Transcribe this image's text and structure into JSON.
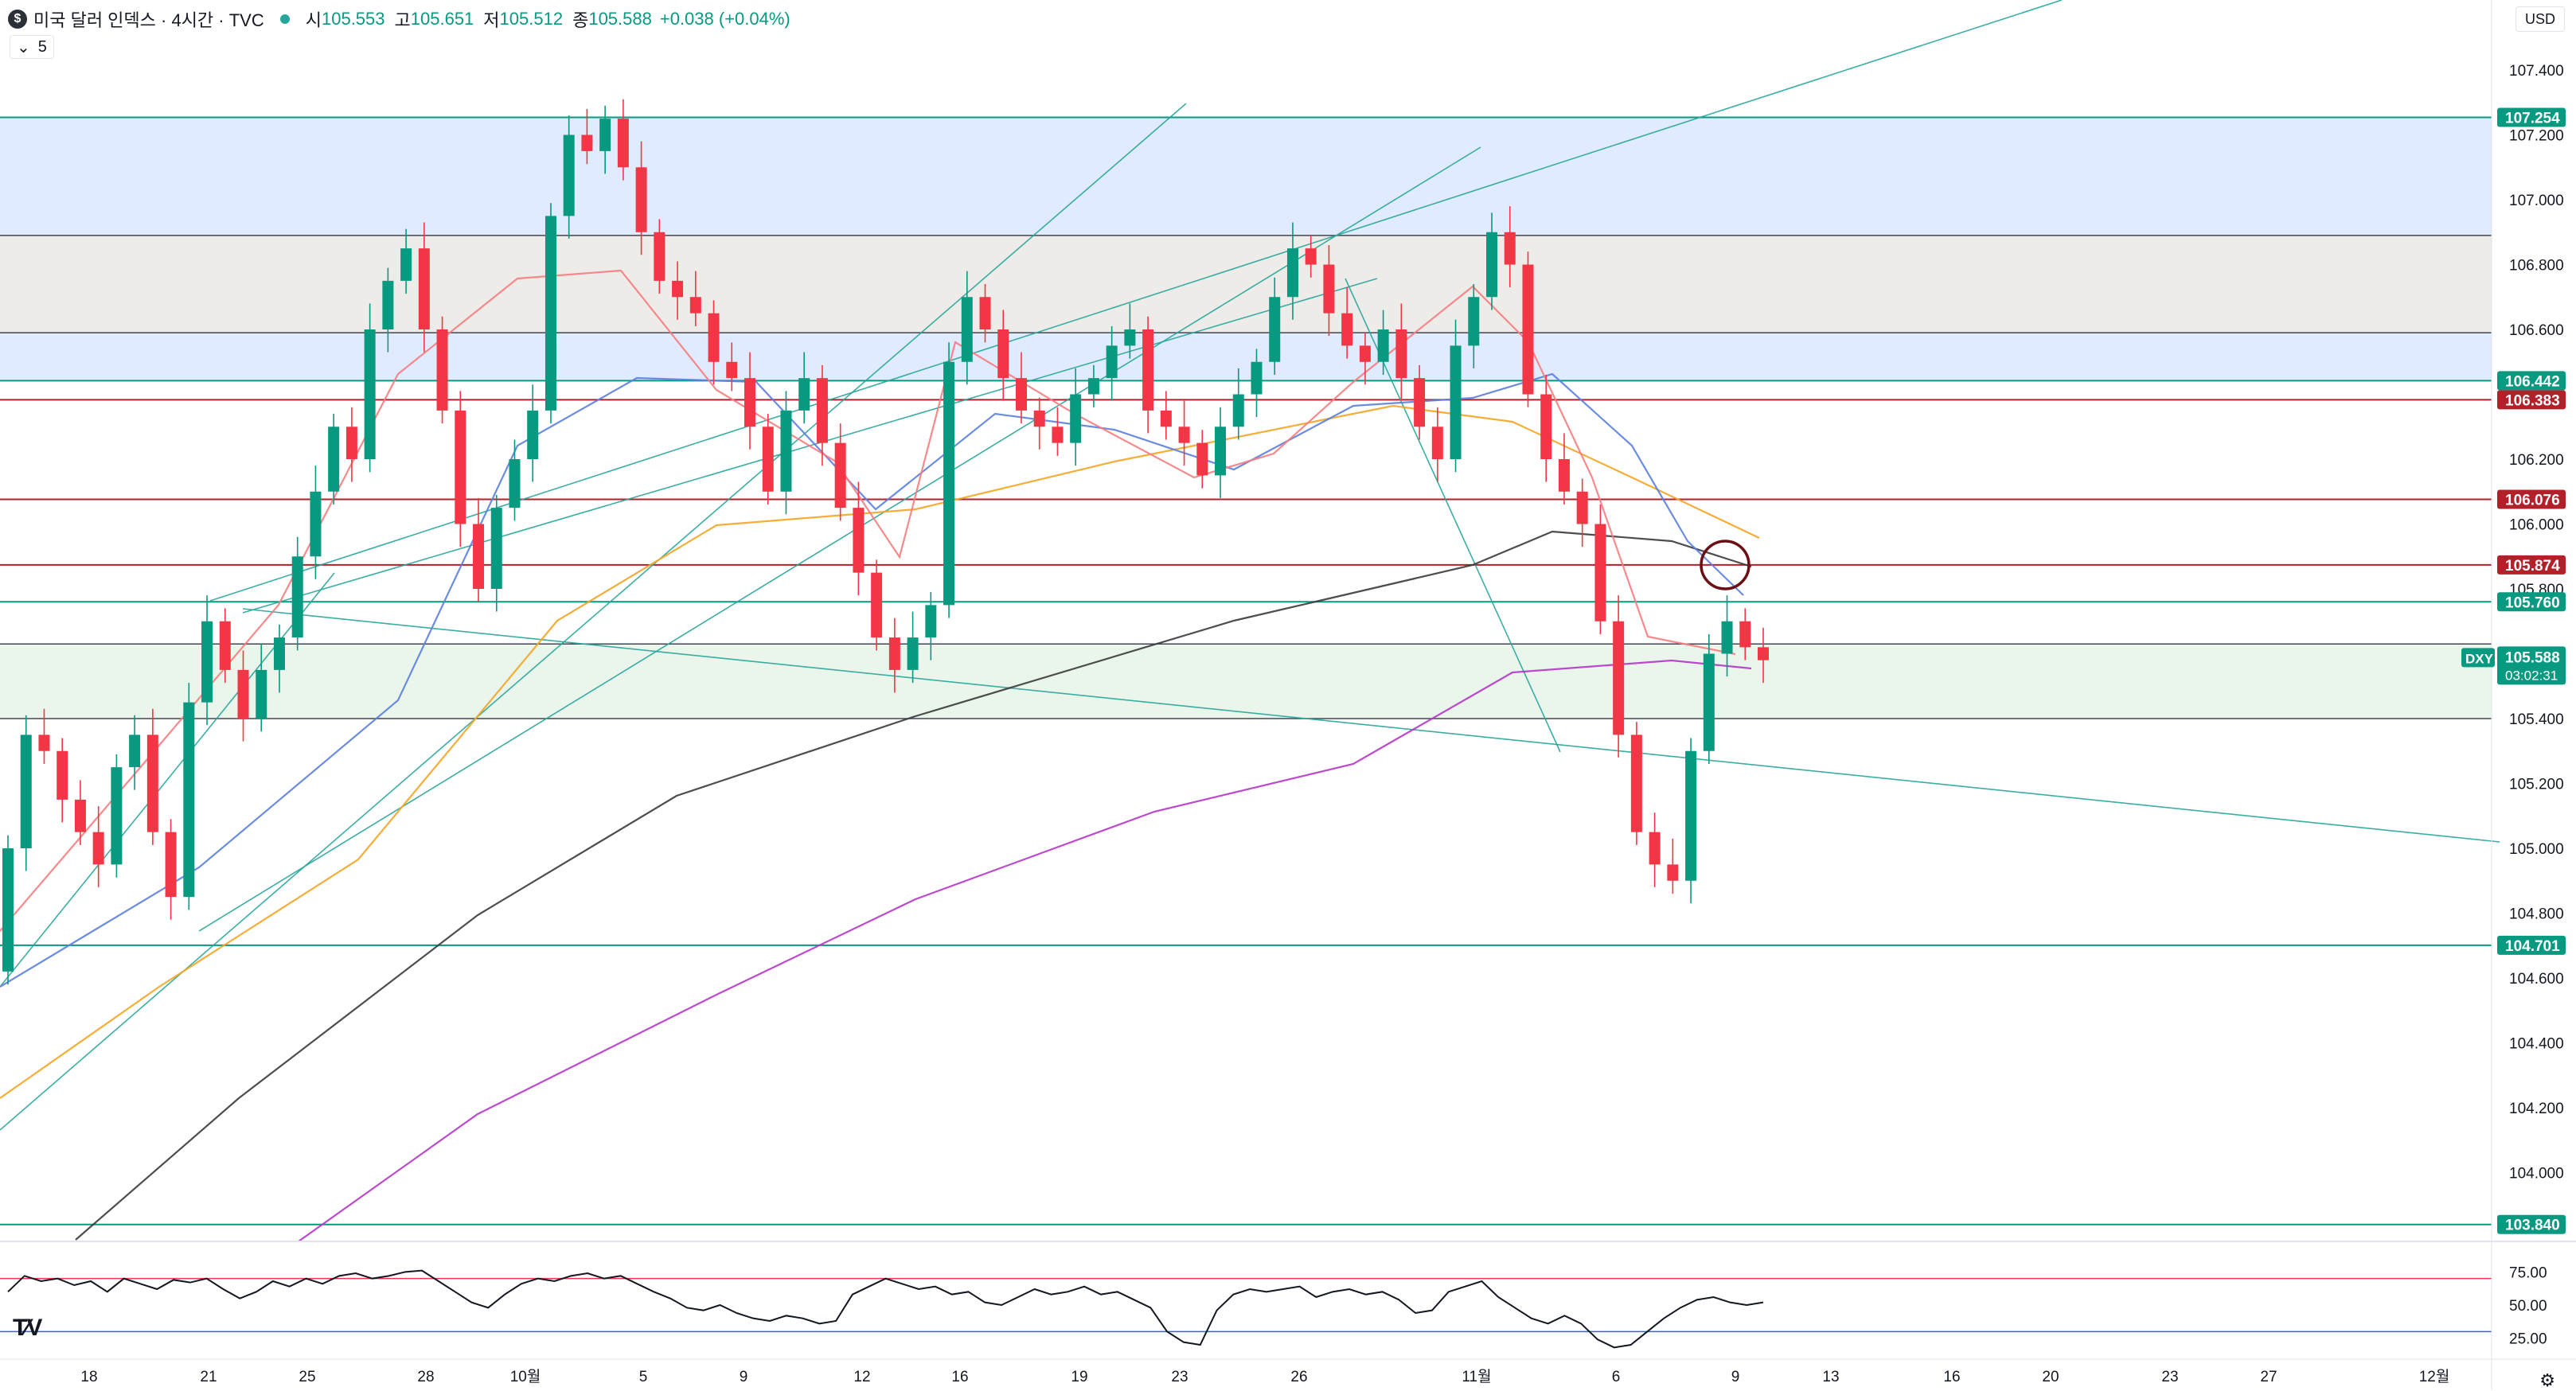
{
  "header": {
    "logo_glyph": "$",
    "title": "미국 달러 인덱스 · 4시간 · TVC",
    "open_label": "시",
    "open": "105.553",
    "high_label": "고",
    "high": "105.651",
    "low_label": "저",
    "low": "105.512",
    "close_label": "종",
    "close": "105.588",
    "change": "+0.038 (+0.04%)",
    "indicator_toggle": "5",
    "currency": "USD"
  },
  "colors": {
    "up": "#089981",
    "down": "#f23645",
    "zone_blue": "#dbe7ff",
    "zone_gray": "#ebe9e4",
    "zone_green": "#e6f4e9",
    "ma_red": "#f77c80",
    "ma_blue": "#5b7fde",
    "ma_orange": "#f5a524",
    "ma_black": "#3a3a3a",
    "ma_purple": "#b535c9",
    "trend": "#26a69a"
  },
  "chart_data": {
    "type": "candlestick",
    "symbol": "DXY",
    "price_axis": {
      "ticks": [
        "107.400",
        "107.200",
        "107.000",
        "106.800",
        "106.600",
        "106.200",
        "106.000",
        "105.800",
        "105.400",
        "105.200",
        "105.000",
        "104.800",
        "104.600",
        "104.400",
        "104.200",
        "104.000"
      ],
      "ylim": [
        103.7,
        107.6
      ]
    },
    "time_axis": {
      "labels": [
        "18",
        "21",
        "25",
        "28",
        "10월",
        "5",
        "9",
        "12",
        "16",
        "19",
        "23",
        "26",
        "11월",
        "6",
        "9",
        "13",
        "16",
        "20",
        "23",
        "27",
        "12월"
      ]
    },
    "horizontal_levels": [
      {
        "price": 107.254,
        "label": "107.254",
        "color": "#089981"
      },
      {
        "price": 106.442,
        "label": "106.442",
        "color": "#089981"
      },
      {
        "price": 106.383,
        "label": "106.383",
        "color": "#b2202a"
      },
      {
        "price": 106.076,
        "label": "106.076",
        "color": "#b2202a"
      },
      {
        "price": 105.874,
        "label": "105.874",
        "color": "#b2202a"
      },
      {
        "price": 105.76,
        "label": "105.760",
        "color": "#089981"
      },
      {
        "price": 104.701,
        "label": "104.701",
        "color": "#089981"
      },
      {
        "price": 103.84,
        "label": "103.840",
        "color": "#089981"
      }
    ],
    "last_price": {
      "symbol": "DXY",
      "price": "105.588",
      "countdown": "03:02:31"
    },
    "zones": [
      {
        "from": 106.89,
        "to": 107.254,
        "color": "blue"
      },
      {
        "from": 106.59,
        "to": 106.89,
        "color": "gray"
      },
      {
        "from": 106.442,
        "to": 106.59,
        "color": "blue"
      },
      {
        "from": 105.4,
        "to": 105.63,
        "color": "green"
      }
    ],
    "rsi": {
      "ticks": [
        "75.00",
        "50.00",
        "25.00"
      ],
      "upper": 70,
      "lower": 30,
      "values": [
        60,
        72,
        68,
        70,
        65,
        68,
        60,
        70,
        66,
        62,
        69,
        67,
        70,
        62,
        55,
        60,
        68,
        64,
        70,
        66,
        72,
        74,
        70,
        72,
        75,
        76,
        68,
        60,
        52,
        48,
        58,
        66,
        70,
        68,
        72,
        74,
        70,
        72,
        66,
        60,
        55,
        48,
        46,
        50,
        44,
        40,
        38,
        42,
        40,
        36,
        38,
        58,
        64,
        70,
        66,
        62,
        64,
        58,
        60,
        52,
        50,
        56,
        62,
        58,
        60,
        64,
        58,
        60,
        54,
        48,
        30,
        22,
        20,
        46,
        58,
        62,
        60,
        62,
        64,
        56,
        60,
        62,
        58,
        60,
        54,
        44,
        46,
        60,
        64,
        68,
        56,
        48,
        40,
        36,
        42,
        36,
        24,
        18,
        20,
        30,
        40,
        48,
        54,
        56,
        52,
        50,
        52
      ]
    }
  }
}
